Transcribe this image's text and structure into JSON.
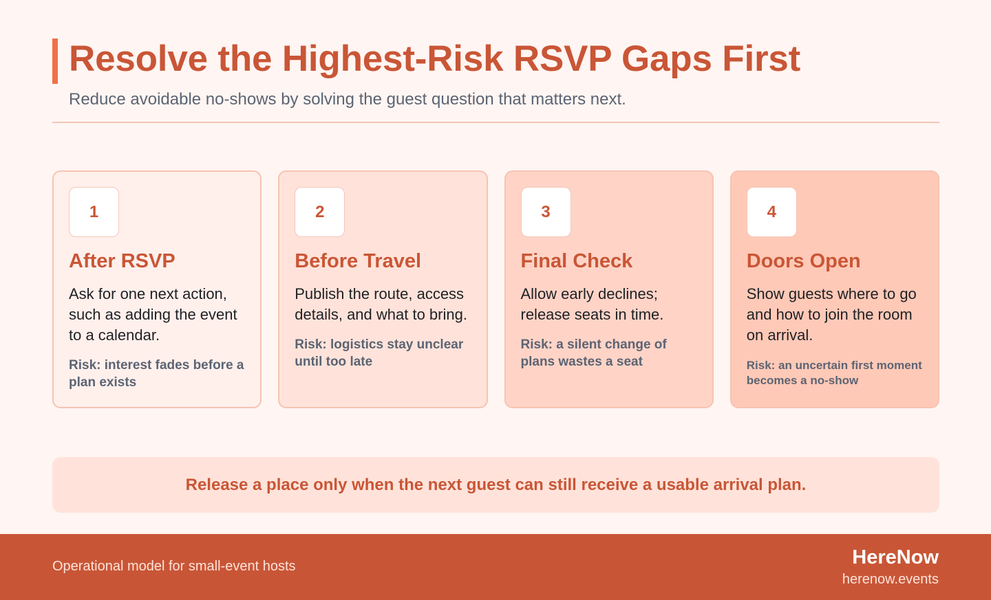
{
  "header": {
    "title": "Resolve the Highest-Risk RSVP Gaps First",
    "subtitle": "Reduce avoidable no-shows by solving the guest question that matters next."
  },
  "cards": [
    {
      "number": "1",
      "title": "After RSVP",
      "body": "Ask for one next action, such as adding the event to a calendar.",
      "risk": "Risk: interest fades before a plan exists"
    },
    {
      "number": "2",
      "title": "Before Travel",
      "body": "Publish the route, access details, and what to bring.",
      "risk": "Risk: logistics stay unclear until too late"
    },
    {
      "number": "3",
      "title": "Final Check",
      "body": "Allow early declines; release seats in time.",
      "risk": "Risk: a silent change of plans wastes a seat"
    },
    {
      "number": "4",
      "title": "Doors Open",
      "body": "Show guests where to go and how to join the room on arrival.",
      "risk": "Risk: an uncertain first moment becomes a no-show"
    }
  ],
  "callout": {
    "text": "Release a place only when the next guest can still receive a usable arrival plan."
  },
  "footer": {
    "tagline": "Operational model for small-event hosts",
    "brand": "HereNow",
    "url": "herenow.events"
  },
  "colors": {
    "accent": "#c95636",
    "accent_bar": "#f0704a",
    "footer_bg": "#c85636",
    "page_bg": "#fff5f2"
  }
}
